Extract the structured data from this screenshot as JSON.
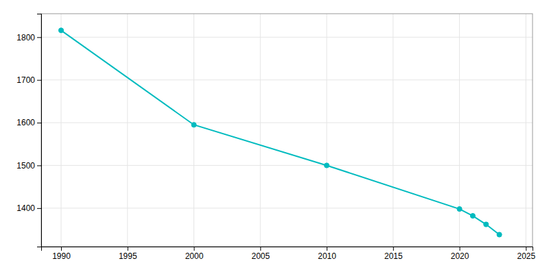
{
  "chart_data": {
    "type": "line",
    "x": [
      1990,
      2000,
      2010,
      2020,
      2021,
      2022,
      2023
    ],
    "values": [
      1816,
      1595,
      1500,
      1398,
      1382,
      1362,
      1338
    ],
    "color": "#00BBBF",
    "marker": "circle",
    "xlim": [
      1988.5,
      2025.5
    ],
    "ylim": [
      1310,
      1855
    ],
    "xticks": [
      1990,
      1995,
      2000,
      2005,
      2010,
      2015,
      2020,
      2025
    ],
    "yticks": [
      1400,
      1500,
      1600,
      1700,
      1800
    ],
    "grid": true
  }
}
